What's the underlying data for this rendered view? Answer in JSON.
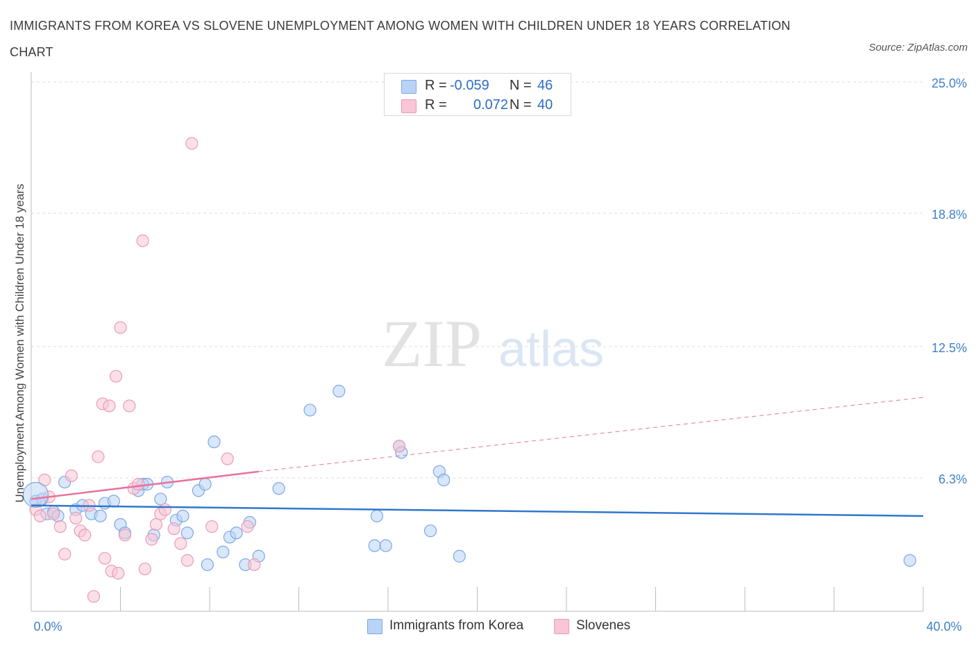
{
  "title": "IMMIGRANTS FROM KOREA VS SLOVENE UNEMPLOYMENT AMONG WOMEN WITH CHILDREN UNDER 18 YEARS CORRELATION CHART",
  "source": "Source: ZipAtlas.com",
  "watermark": {
    "zip": "ZIP",
    "atlas": "atlas"
  },
  "colors": {
    "korea_fill": "#b9d3f6",
    "korea_stroke": "#7aa8e4",
    "korea_line": "#2f77cc",
    "slovene_fill": "#f8c6d6",
    "slovene_stroke": "#ec9ab6",
    "slovene_line": "#e8729c",
    "grid": "#dddddd",
    "tick_label": "#3f7fc8"
  },
  "legend_top": {
    "rows": [
      {
        "r_label": "R =",
        "r_value": "-0.059",
        "n_label": "N =",
        "n_value": "46"
      },
      {
        "r_label": "R =",
        "r_value": "0.072",
        "n_label": "N =",
        "n_value": "40"
      }
    ]
  },
  "legend_bottom": {
    "items": [
      "Immigrants from Korea",
      "Slovenes"
    ]
  },
  "chart_data": {
    "type": "scatter",
    "xlabel": "",
    "ylabel": "Unemployment Among Women with Children Under 18 years",
    "xlim": [
      0,
      40
    ],
    "ylim": [
      0,
      25
    ],
    "x_tick_labels": [
      {
        "value": 0,
        "label": "0.0%"
      },
      {
        "value": 40,
        "label": "40.0%"
      }
    ],
    "y_ticks": [
      {
        "value": 6.3,
        "label": "6.3%"
      },
      {
        "value": 12.5,
        "label": "12.5%"
      },
      {
        "value": 18.8,
        "label": "18.8%"
      },
      {
        "value": 25.0,
        "label": "25.0%"
      }
    ],
    "grid": "horizontal dashed",
    "legend_position": "bottom",
    "series": [
      {
        "name": "Immigrants from Korea",
        "points": [
          [
            0.2,
            5.2
          ],
          [
            0.5,
            5.3
          ],
          [
            0.7,
            4.6
          ],
          [
            1.0,
            4.7
          ],
          [
            1.2,
            4.5
          ],
          [
            1.5,
            6.1
          ],
          [
            2.0,
            4.8
          ],
          [
            2.3,
            5.0
          ],
          [
            2.7,
            4.6
          ],
          [
            3.1,
            4.5
          ],
          [
            3.3,
            5.1
          ],
          [
            3.7,
            5.2
          ],
          [
            4.0,
            4.1
          ],
          [
            4.2,
            3.7
          ],
          [
            4.8,
            5.7
          ],
          [
            5.0,
            6.0
          ],
          [
            5.2,
            6.0
          ],
          [
            5.5,
            3.6
          ],
          [
            5.8,
            5.3
          ],
          [
            6.1,
            6.1
          ],
          [
            6.5,
            4.3
          ],
          [
            6.8,
            4.5
          ],
          [
            7.0,
            3.7
          ],
          [
            7.5,
            5.7
          ],
          [
            7.8,
            6.0
          ],
          [
            7.9,
            2.2
          ],
          [
            8.2,
            8.0
          ],
          [
            8.6,
            2.8
          ],
          [
            8.9,
            3.5
          ],
          [
            9.2,
            3.7
          ],
          [
            9.6,
            2.2
          ],
          [
            9.8,
            4.2
          ],
          [
            10.2,
            2.6
          ],
          [
            11.1,
            5.8
          ],
          [
            12.5,
            9.5
          ],
          [
            13.8,
            10.4
          ],
          [
            15.4,
            3.1
          ],
          [
            15.5,
            4.5
          ],
          [
            15.9,
            3.1
          ],
          [
            16.5,
            7.8
          ],
          [
            16.6,
            7.5
          ],
          [
            17.9,
            3.8
          ],
          [
            18.3,
            6.6
          ],
          [
            18.5,
            6.2
          ],
          [
            19.2,
            2.6
          ],
          [
            39.4,
            2.4
          ]
        ]
      },
      {
        "name": "Slovenes",
        "points": [
          [
            0.2,
            4.8
          ],
          [
            0.4,
            4.5
          ],
          [
            0.6,
            6.2
          ],
          [
            0.8,
            5.4
          ],
          [
            1.0,
            4.6
          ],
          [
            1.3,
            4.0
          ],
          [
            1.5,
            2.7
          ],
          [
            1.8,
            6.4
          ],
          [
            2.0,
            4.4
          ],
          [
            2.2,
            3.8
          ],
          [
            2.4,
            3.6
          ],
          [
            2.6,
            5.0
          ],
          [
            2.8,
            0.7
          ],
          [
            3.0,
            7.3
          ],
          [
            3.2,
            9.8
          ],
          [
            3.3,
            2.5
          ],
          [
            3.5,
            9.7
          ],
          [
            3.6,
            1.9
          ],
          [
            3.8,
            11.1
          ],
          [
            3.9,
            1.8
          ],
          [
            4.0,
            13.4
          ],
          [
            4.2,
            3.6
          ],
          [
            4.4,
            9.7
          ],
          [
            4.6,
            5.8
          ],
          [
            4.8,
            6.0
          ],
          [
            5.0,
            17.5
          ],
          [
            5.1,
            2.0
          ],
          [
            5.4,
            3.4
          ],
          [
            5.6,
            4.1
          ],
          [
            5.8,
            4.6
          ],
          [
            6.0,
            4.8
          ],
          [
            6.4,
            3.9
          ],
          [
            6.7,
            3.2
          ],
          [
            7.0,
            2.4
          ],
          [
            7.2,
            22.1
          ],
          [
            8.1,
            4.0
          ],
          [
            8.8,
            7.2
          ],
          [
            9.7,
            4.0
          ],
          [
            10.0,
            2.2
          ],
          [
            16.5,
            7.8
          ]
        ]
      }
    ],
    "trend_lines": [
      {
        "series": "Immigrants from Korea",
        "x": [
          0,
          40
        ],
        "y": [
          5.0,
          4.5
        ]
      },
      {
        "series": "Slovenes",
        "x": [
          0,
          10.2
        ],
        "y": [
          5.3,
          6.6
        ],
        "extension_x": [
          10.2,
          40
        ],
        "extension_y": [
          6.6,
          10.1
        ]
      }
    ]
  }
}
